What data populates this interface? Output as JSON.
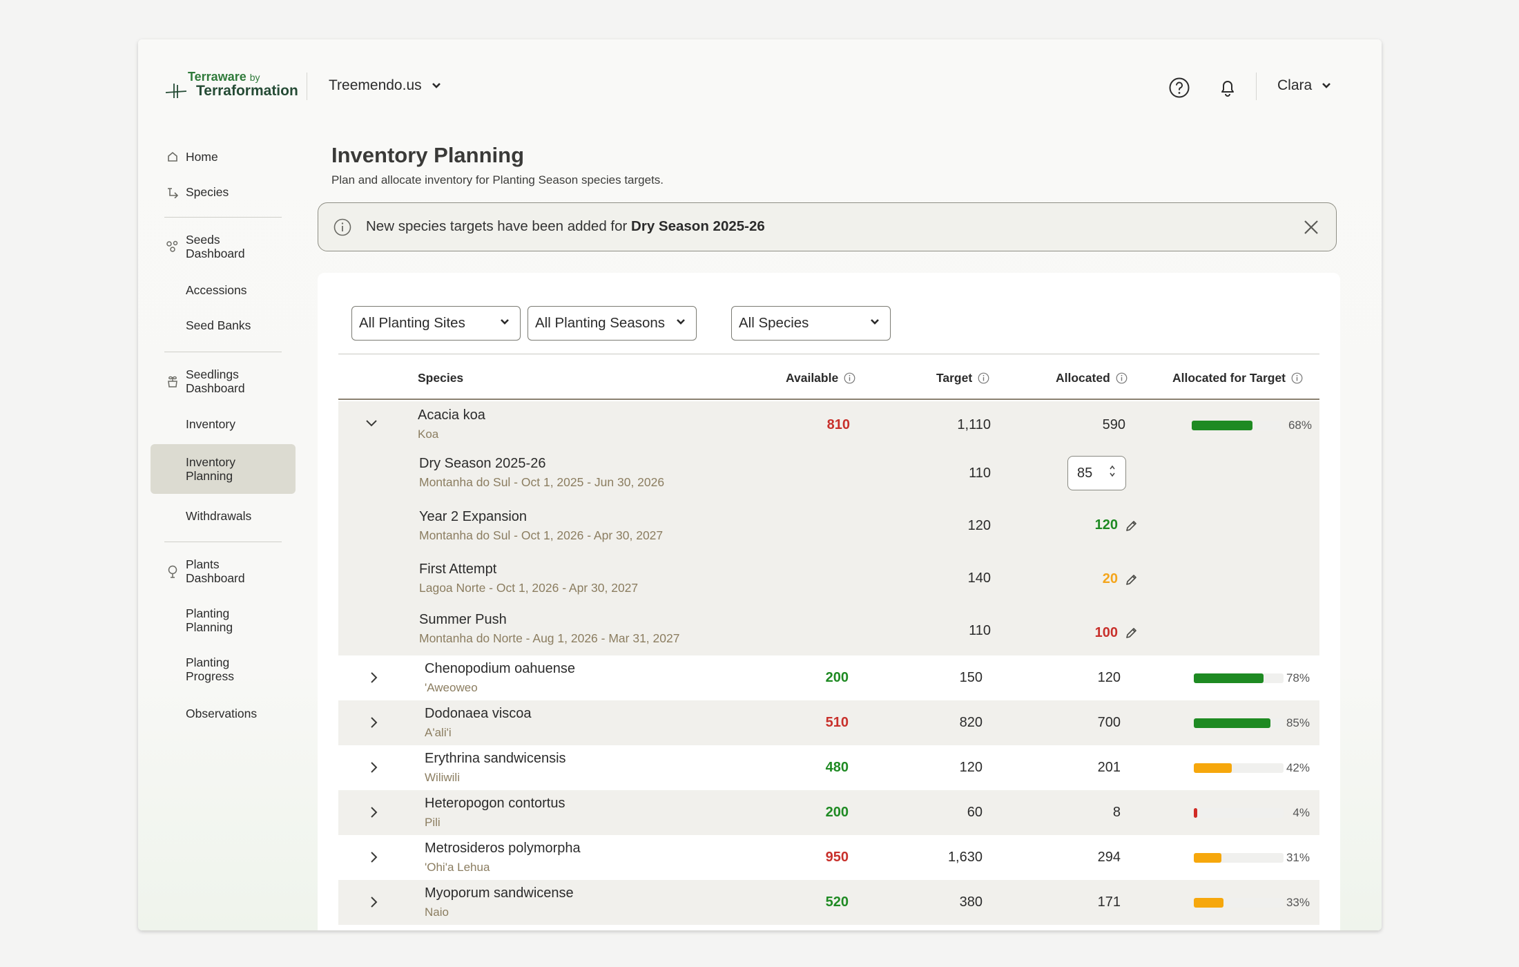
{
  "header": {
    "logo_top": "Terraware",
    "logo_by": "by",
    "logo_bottom": "Terraformation",
    "org_name": "Treemendo.us",
    "user_name": "Clara"
  },
  "sidebar": {
    "items": [
      {
        "label": "Home",
        "icon": "home-icon"
      },
      {
        "label": "Species",
        "icon": "species-icon"
      },
      {
        "label": "Seeds\nDashboard",
        "icon": "seeds-icon"
      },
      {
        "label": "Accessions"
      },
      {
        "label": "Seed Banks"
      },
      {
        "label": "Seedlings\nDashboard",
        "icon": "seedlings-icon"
      },
      {
        "label": "Inventory"
      },
      {
        "label": "Inventory\nPlanning",
        "active": true
      },
      {
        "label": "Withdrawals"
      },
      {
        "label": "Plants\nDashboard",
        "icon": "plants-icon"
      },
      {
        "label": "Planting\nPlanning"
      },
      {
        "label": "Planting\nProgress"
      },
      {
        "label": "Observations"
      }
    ]
  },
  "page": {
    "title": "Inventory Planning",
    "subtitle": "Plan and allocate inventory for Planting Season species targets."
  },
  "banner": {
    "message": "New species targets have been added for ",
    "highlight": "Dry Season 2025-26"
  },
  "filters": {
    "sites": "All Planting Sites",
    "seasons": "All Planting Seasons",
    "species": "All Species"
  },
  "table": {
    "headers": {
      "species": "Species",
      "available": "Available",
      "target": "Target",
      "allocated": "Allocated",
      "allocated_for_target": "Allocated for Target"
    },
    "expanded": {
      "name": "Acacia koa",
      "common": "Koa",
      "available": "810",
      "target": "1,110",
      "allocated": "590",
      "pct": "68%",
      "pct_value": 68,
      "seasons": [
        {
          "title": "Dry Season 2025-26",
          "meta": "Montanha do Sul  - Oct 1, 2025 - Jun 30, 2026",
          "target": "110",
          "allocated": "85",
          "editing": true
        },
        {
          "title": "Year 2 Expansion",
          "meta": "Montanha do Sul  - Oct 1, 2026 - Apr 30, 2027",
          "target": "120",
          "allocated": "120",
          "status": "green"
        },
        {
          "title": "First Attempt",
          "meta": "Lagoa Norte  - Oct 1, 2026 - Apr 30, 2027",
          "target": "140",
          "allocated": "20",
          "status": "orange"
        },
        {
          "title": "Summer Push",
          "meta": "Montanha do Norte  - Aug 1, 2026 - Mar 31, 2027",
          "target": "110",
          "allocated": "100",
          "status": "red"
        }
      ]
    },
    "rows": [
      {
        "name": "Chenopodium oahuense",
        "common": "'Aweoweo",
        "available": "200",
        "available_status": "green",
        "target": "150",
        "allocated": "120",
        "pct": "78%",
        "pct_value": 78,
        "bar_color": "#1e8a22"
      },
      {
        "name": "Dodonaea viscoa",
        "common": "A'ali'i",
        "available": "510",
        "available_status": "red",
        "target": "820",
        "allocated": "700",
        "pct": "85%",
        "pct_value": 85,
        "bar_color": "#1e8a22"
      },
      {
        "name": "Erythrina sandwicensis",
        "common": "Wiliwili",
        "available": "480",
        "available_status": "green",
        "target": "120",
        "allocated": "201",
        "pct": "42%",
        "pct_value": 42,
        "bar_color": "#f6a70c"
      },
      {
        "name": "Heteropogon contortus",
        "common": "Pili",
        "available": "200",
        "available_status": "green",
        "target": "60",
        "allocated": "8",
        "pct": "4%",
        "pct_value": 4,
        "bar_color": "#d02b25"
      },
      {
        "name": "Metrosideros polymorpha",
        "common": "'Ohi'a Lehua",
        "available": "950",
        "available_status": "red",
        "target": "1,630",
        "allocated": "294",
        "pct": "31%",
        "pct_value": 31,
        "bar_color": "#f6a70c"
      },
      {
        "name": "Myoporum sandwicense",
        "common": "Naio",
        "available": "520",
        "available_status": "green",
        "target": "380",
        "allocated": "171",
        "pct": "33%",
        "pct_value": 33,
        "bar_color": "#f6a70c"
      }
    ]
  },
  "colors": {
    "green": "#1f8a23",
    "red": "#c8302b",
    "orange": "#f4a51c",
    "bar_green": "#1e8a22"
  }
}
